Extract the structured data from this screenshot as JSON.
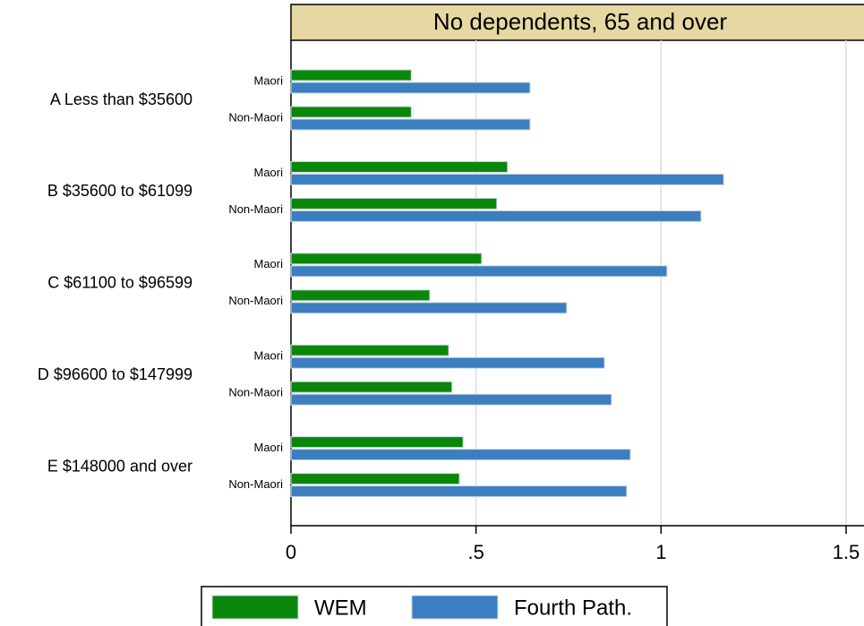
{
  "chart_data": {
    "type": "grouped-hbar",
    "panel_title": "No dependents, 65 and over",
    "groups": [
      "A Less than $35600",
      "B $35600 to $61099",
      "C $61100 to $96599",
      "D $96600 to $147999",
      "E $148000 and over"
    ],
    "subgroups": [
      "Maori",
      "Non-Maori"
    ],
    "series": [
      {
        "name": "WEM",
        "color": "#0a870a",
        "values": [
          [
            0.325,
            0.325
          ],
          [
            0.585,
            0.556
          ],
          [
            0.515,
            0.375
          ],
          [
            0.426,
            0.435
          ],
          [
            0.465,
            0.455
          ]
        ]
      },
      {
        "name": "Fourth Path.",
        "color": "#3b7fc0",
        "values": [
          [
            0.646,
            0.646
          ],
          [
            1.169,
            1.108
          ],
          [
            1.016,
            0.745
          ],
          [
            0.847,
            0.866
          ],
          [
            0.917,
            0.907
          ]
        ]
      }
    ],
    "xlim": [
      0,
      1.5
    ],
    "xticks": [
      0,
      {
        "value": 0.5,
        "label": ".5"
      },
      1,
      {
        "value": 1.5,
        "label": "1.5"
      }
    ],
    "grid": true
  }
}
